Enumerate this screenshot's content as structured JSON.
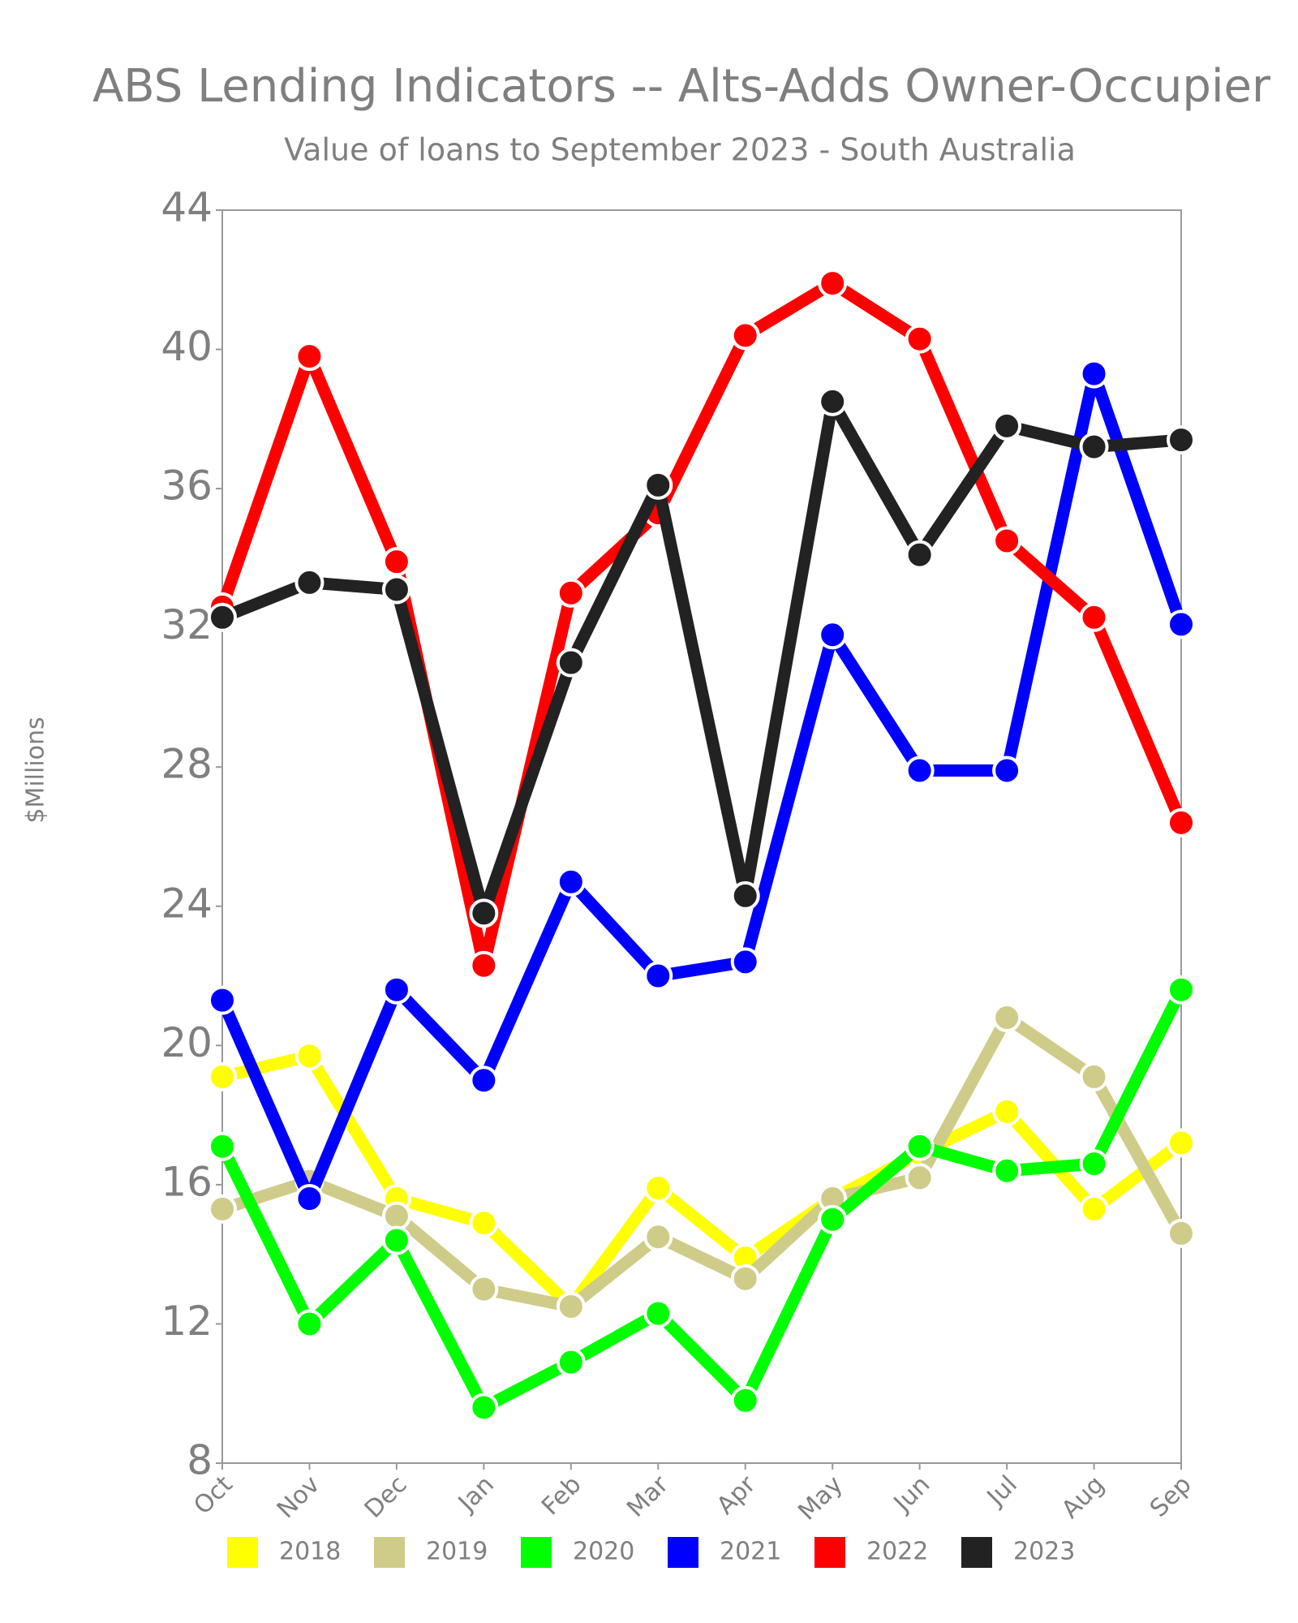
{
  "chart_data": {
    "type": "line",
    "title": "ABS Lending Indicators -- Alts-Adds Owner-Occupier",
    "subtitle": "Value of loans to September 2023 - South Australia",
    "y_label": "$Millions",
    "categories": [
      "Oct",
      "Nov",
      "Dec",
      "Jan",
      "Feb",
      "Mar",
      "Apr",
      "May",
      "Jun",
      "Jul",
      "Aug",
      "Sep"
    ],
    "ylim": [
      8,
      44
    ],
    "yticks": [
      8,
      12,
      16,
      20,
      24,
      28,
      32,
      36,
      40,
      44
    ],
    "grid": false,
    "legend": "bottom",
    "series": [
      {
        "name": "2018",
        "color": "#ffff00",
        "values": [
          19.1,
          19.7,
          15.6,
          14.9,
          12.5,
          15.9,
          13.9,
          15.6,
          16.9,
          18.1,
          15.3,
          17.2
        ]
      },
      {
        "name": "2019",
        "color": "#cfcc8a",
        "values": [
          15.3,
          16.1,
          15.1,
          13.0,
          12.5,
          14.5,
          13.3,
          15.6,
          16.2,
          20.8,
          19.1,
          14.6
        ]
      },
      {
        "name": "2020",
        "color": "#00ff00",
        "values": [
          17.1,
          12.0,
          14.4,
          9.6,
          10.9,
          12.3,
          9.8,
          15.0,
          17.1,
          16.4,
          16.6,
          21.6
        ]
      },
      {
        "name": "2021",
        "color": "#0000ff",
        "values": [
          21.3,
          15.6,
          21.6,
          19.0,
          24.7,
          22.0,
          22.4,
          31.8,
          27.9,
          27.9,
          39.3,
          32.1
        ]
      },
      {
        "name": "2022",
        "color": "#ff0000",
        "values": [
          32.6,
          39.8,
          33.9,
          22.3,
          33.0,
          35.3,
          40.4,
          41.9,
          40.3,
          34.5,
          32.3,
          26.4
        ]
      },
      {
        "name": "2023",
        "color": "#222222",
        "values": [
          32.3,
          33.3,
          33.1,
          23.8,
          31.0,
          36.1,
          24.3,
          38.5,
          34.1,
          37.8,
          37.2,
          37.4
        ]
      }
    ]
  }
}
